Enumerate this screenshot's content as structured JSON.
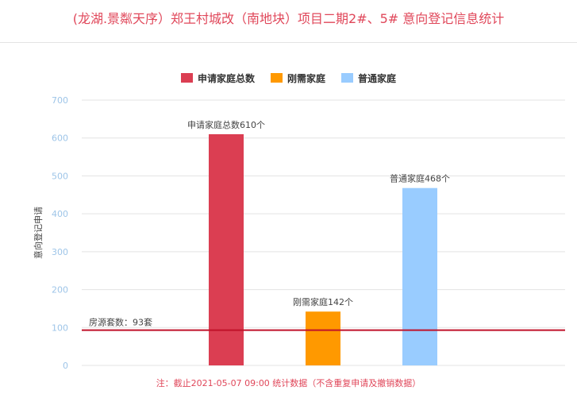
{
  "page": {
    "title": "(龙湖.景粼天序）郑王村城改（南地块）项目二期2#、5# 意向登记信息统计",
    "footnote": "注：截止2021-05-07 09:00 统计数据（不含重复申请及撤销数据）"
  },
  "chart_data": {
    "type": "bar",
    "title": "",
    "ylabel": "意向登记申请",
    "xlabel": "",
    "ylim": [
      0,
      700
    ],
    "yticks": [
      0,
      100,
      200,
      300,
      400,
      500,
      600,
      700
    ],
    "grid": true,
    "legend_position": "top-center",
    "series": [
      {
        "name": "申请家庭总数",
        "value": 610,
        "color": "#db3e52",
        "label": "申请家庭总数610个"
      },
      {
        "name": "刚需家庭",
        "value": 142,
        "color": "#ff9900",
        "label": "刚需家庭142个"
      },
      {
        "name": "普通家庭",
        "value": 468,
        "color": "#99ccff",
        "label": "普通家庭468个"
      }
    ],
    "reference_line": {
      "value": 93,
      "label": "房源套数：93套",
      "color": "#c0122a"
    }
  }
}
